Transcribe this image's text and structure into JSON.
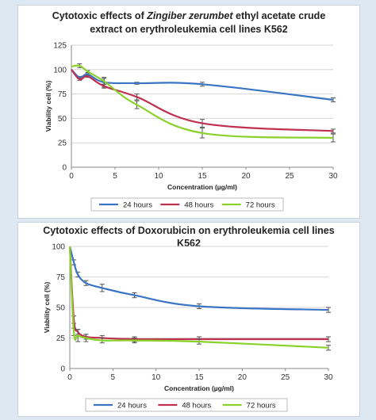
{
  "chart_data": [
    {
      "type": "line",
      "title_prefix": "Cytotoxic effects of ",
      "title_italic": "Zingiber zerumbet",
      "title_suffix": " ethyl acetate crude",
      "title_line2": "extract on erythroleukemia cell lines K562",
      "xlabel": "Concentration (µg/ml)",
      "ylabel": "Viability cell (%)",
      "xlim": [
        0,
        30
      ],
      "ylim": [
        0,
        125
      ],
      "xticks": [
        0,
        5,
        10,
        15,
        20,
        25,
        30
      ],
      "yticks": [
        0,
        25,
        50,
        75,
        100,
        125
      ],
      "grid": "horizontal",
      "legend_position": "bottom",
      "series": [
        {
          "name": "24 hours",
          "color": "#3a75c4",
          "x": [
            0,
            0.94,
            1.88,
            3.75,
            7.5,
            15,
            30
          ],
          "y": [
            100,
            92,
            95,
            87,
            86,
            85,
            69
          ],
          "err": [
            0,
            1,
            1,
            5,
            1,
            2,
            2
          ]
        },
        {
          "name": "48 hours",
          "color": "#c0304f",
          "x": [
            0,
            0.94,
            1.88,
            3.75,
            7.5,
            15,
            30
          ],
          "y": [
            100,
            90,
            93,
            83,
            72,
            45,
            37
          ],
          "err": [
            0,
            1,
            1,
            2,
            3,
            4,
            2
          ]
        },
        {
          "name": "72 hours",
          "color": "#8ad129",
          "x": [
            0,
            0.94,
            1.88,
            3.75,
            7.5,
            15,
            30
          ],
          "y": [
            103,
            104,
            98,
            88,
            64,
            35,
            30
          ],
          "err": [
            0,
            2,
            1,
            3,
            4,
            5,
            4
          ]
        }
      ]
    },
    {
      "type": "line",
      "title_line1": "Cytotoxic effects of Doxorubicin on erythroleukemia cell lines",
      "title_line2": "K562",
      "xlabel": "Concentration (µg/ml)",
      "ylabel": "Viability cell (%)",
      "xlim": [
        0,
        30
      ],
      "ylim": [
        0,
        100
      ],
      "xticks": [
        0,
        5,
        10,
        15,
        20,
        25,
        30
      ],
      "yticks": [
        0,
        25,
        50,
        75,
        100
      ],
      "grid": "horizontal",
      "legend_position": "bottom",
      "series": [
        {
          "name": "24 hours",
          "color": "#3a75c4",
          "x": [
            0,
            0.47,
            0.94,
            1.88,
            3.75,
            7.5,
            15,
            30
          ],
          "y": [
            100,
            87,
            77,
            70,
            66,
            60,
            51,
            48
          ],
          "err": [
            0,
            2,
            2,
            2,
            3,
            2,
            2,
            2
          ]
        },
        {
          "name": "48 hours",
          "color": "#c0304f",
          "x": [
            0,
            0.47,
            0.94,
            1.88,
            3.75,
            7.5,
            15,
            30
          ],
          "y": [
            100,
            40,
            30,
            26,
            25,
            24,
            24,
            24
          ],
          "err": [
            0,
            3,
            2,
            2,
            2,
            2,
            2,
            2
          ]
        },
        {
          "name": "72 hours",
          "color": "#8ad129",
          "x": [
            0,
            0.47,
            0.94,
            1.88,
            3.75,
            7.5,
            15,
            30
          ],
          "y": [
            100,
            30,
            27,
            25,
            23,
            23,
            22,
            17
          ],
          "err": [
            0,
            3,
            5,
            3,
            2,
            2,
            2,
            2
          ]
        }
      ]
    }
  ]
}
